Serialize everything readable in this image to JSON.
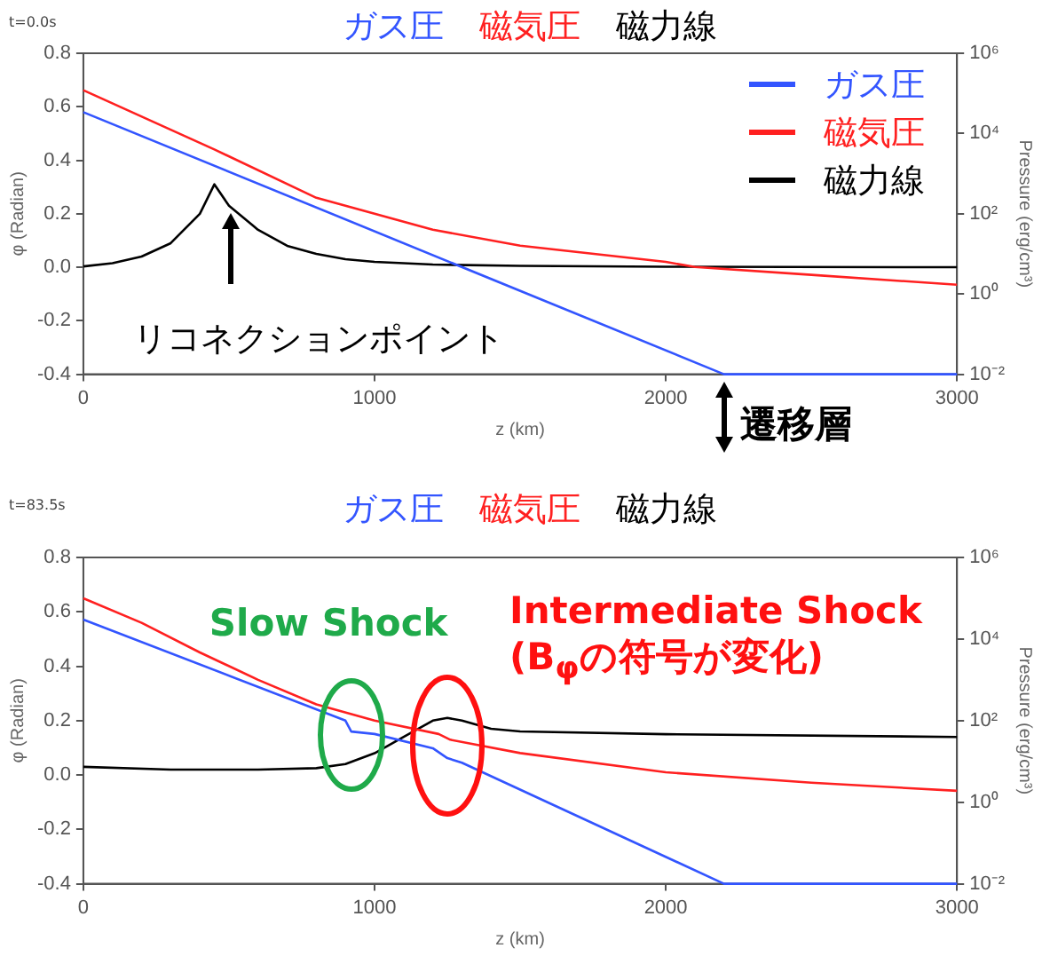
{
  "chart_data": [
    {
      "type": "line",
      "title": "ガス圧　磁気圧　磁力線",
      "subtitle": "t=0.0s",
      "xlabel": "z (km)",
      "ylabel": "φ (Radian)",
      "y2label": "Pressure (erg/cm³)",
      "xlim": [
        0,
        3000
      ],
      "xticks": [
        0,
        1000,
        2000,
        3000
      ],
      "ylim": [
        -0.4,
        0.8
      ],
      "yticks": [
        -0.4,
        -0.2,
        {
          "value": 0,
          "label": "0.0"
        },
        0.2,
        0.4,
        0.6,
        0.8
      ],
      "y2lim": [
        0.01,
        1000000
      ],
      "y2ticks": [
        {
          "value": 0.01,
          "label": "10⁻²"
        },
        {
          "value": 1,
          "label": "10⁰"
        },
        {
          "value": 100,
          "label": "10²"
        },
        {
          "value": 10000,
          "label": "10⁴"
        },
        {
          "value": 1000000,
          "label": "10⁶"
        }
      ],
      "log": "y2",
      "legend": "top right",
      "series": [
        {
          "name": "ガス圧",
          "color": "#3355ff",
          "axis": "y2",
          "x": [
            0,
            2200,
            3000
          ],
          "values": [
            34000,
            0.01,
            0.01
          ]
        },
        {
          "name": "磁気圧",
          "color": "#ff2020",
          "axis": "y2",
          "x": [
            0,
            450,
            800,
            1000,
            1200,
            1500,
            2000,
            2100,
            2500,
            3000
          ],
          "values": [
            120000,
            4000,
            250,
            100,
            40,
            16,
            6.3,
            4.7,
            3.0,
            1.7
          ]
        },
        {
          "name": "磁力線",
          "color": "#000000",
          "x": [
            0,
            100,
            200,
            300,
            400,
            450,
            500,
            600,
            700,
            800,
            900,
            1000,
            1200,
            1500,
            2000,
            3000
          ],
          "values": [
            0.003,
            0.015,
            0.04,
            0.09,
            0.2,
            0.31,
            0.23,
            0.14,
            0.08,
            0.05,
            0.03,
            0.02,
            0.01,
            0.005,
            0.002,
            0
          ]
        }
      ],
      "annotations": [
        "リコネクションポイント",
        {
          "text": "遷移層",
          "x": 2200,
          "y": -0.4
        }
      ]
    },
    {
      "type": "line",
      "subtitle": "t=83.5s",
      "xlabel": "z (km)",
      "ylabel": "φ (Radian)",
      "y2label": "Pressure (erg/cm³)",
      "xlim": [
        0,
        3000
      ],
      "xticks": [
        0,
        1000,
        2000,
        3000
      ],
      "ylim": [
        -0.4,
        0.8
      ],
      "yticks": [
        -0.4,
        -0.2,
        {
          "value": 0,
          "label": "0.0"
        },
        0.2,
        0.4,
        0.6,
        0.8
      ],
      "y2lim": [
        0.01,
        1000000
      ],
      "y2ticks": [
        {
          "value": 0.01,
          "label": "10⁻²"
        },
        {
          "value": 1,
          "label": "10⁰"
        },
        {
          "value": 100,
          "label": "10²"
        },
        {
          "value": 10000,
          "label": "10⁴"
        },
        {
          "value": 1000000,
          "label": "10⁶"
        }
      ],
      "log": "y2",
      "legend": "top",
      "series": [
        {
          "name": "ガス圧",
          "color": "#3355ff",
          "axis": "y2",
          "x": [
            0,
            900,
            920,
            1000,
            1200,
            1250,
            1300,
            2200,
            3000
          ],
          "values": [
            30000,
            100,
            54,
            47,
            21,
            12,
            9.3,
            0.01,
            0.01
          ]
        },
        {
          "name": "磁気圧",
          "color": "#ff2020",
          "axis": "y2",
          "x": [
            0,
            200,
            400,
            600,
            800,
            1000,
            1220,
            1260,
            1500,
            2000,
            2500,
            3000
          ],
          "values": [
            100000,
            25000,
            4700,
            1000,
            250,
            100,
            47,
            34,
            16,
            5.4,
            3.0,
            1.9
          ]
        },
        {
          "name": "磁力線",
          "color": "#000000",
          "x": [
            0,
            300,
            600,
            800,
            900,
            1000,
            1100,
            1200,
            1250,
            1300,
            1400,
            1500,
            2000,
            3000
          ],
          "values": [
            0.03,
            0.02,
            0.02,
            0.025,
            0.04,
            0.08,
            0.14,
            0.2,
            0.21,
            0.2,
            0.17,
            0.16,
            0.15,
            0.14
          ]
        }
      ],
      "annotations": [
        {
          "text": "Slow Shock",
          "x": 920,
          "y": 0.15
        },
        {
          "text": "Intermediate Shock\n(B$_{φ}$の符号が変化)",
          "x": 1250,
          "y": 0.11
        }
      ]
    }
  ]
}
